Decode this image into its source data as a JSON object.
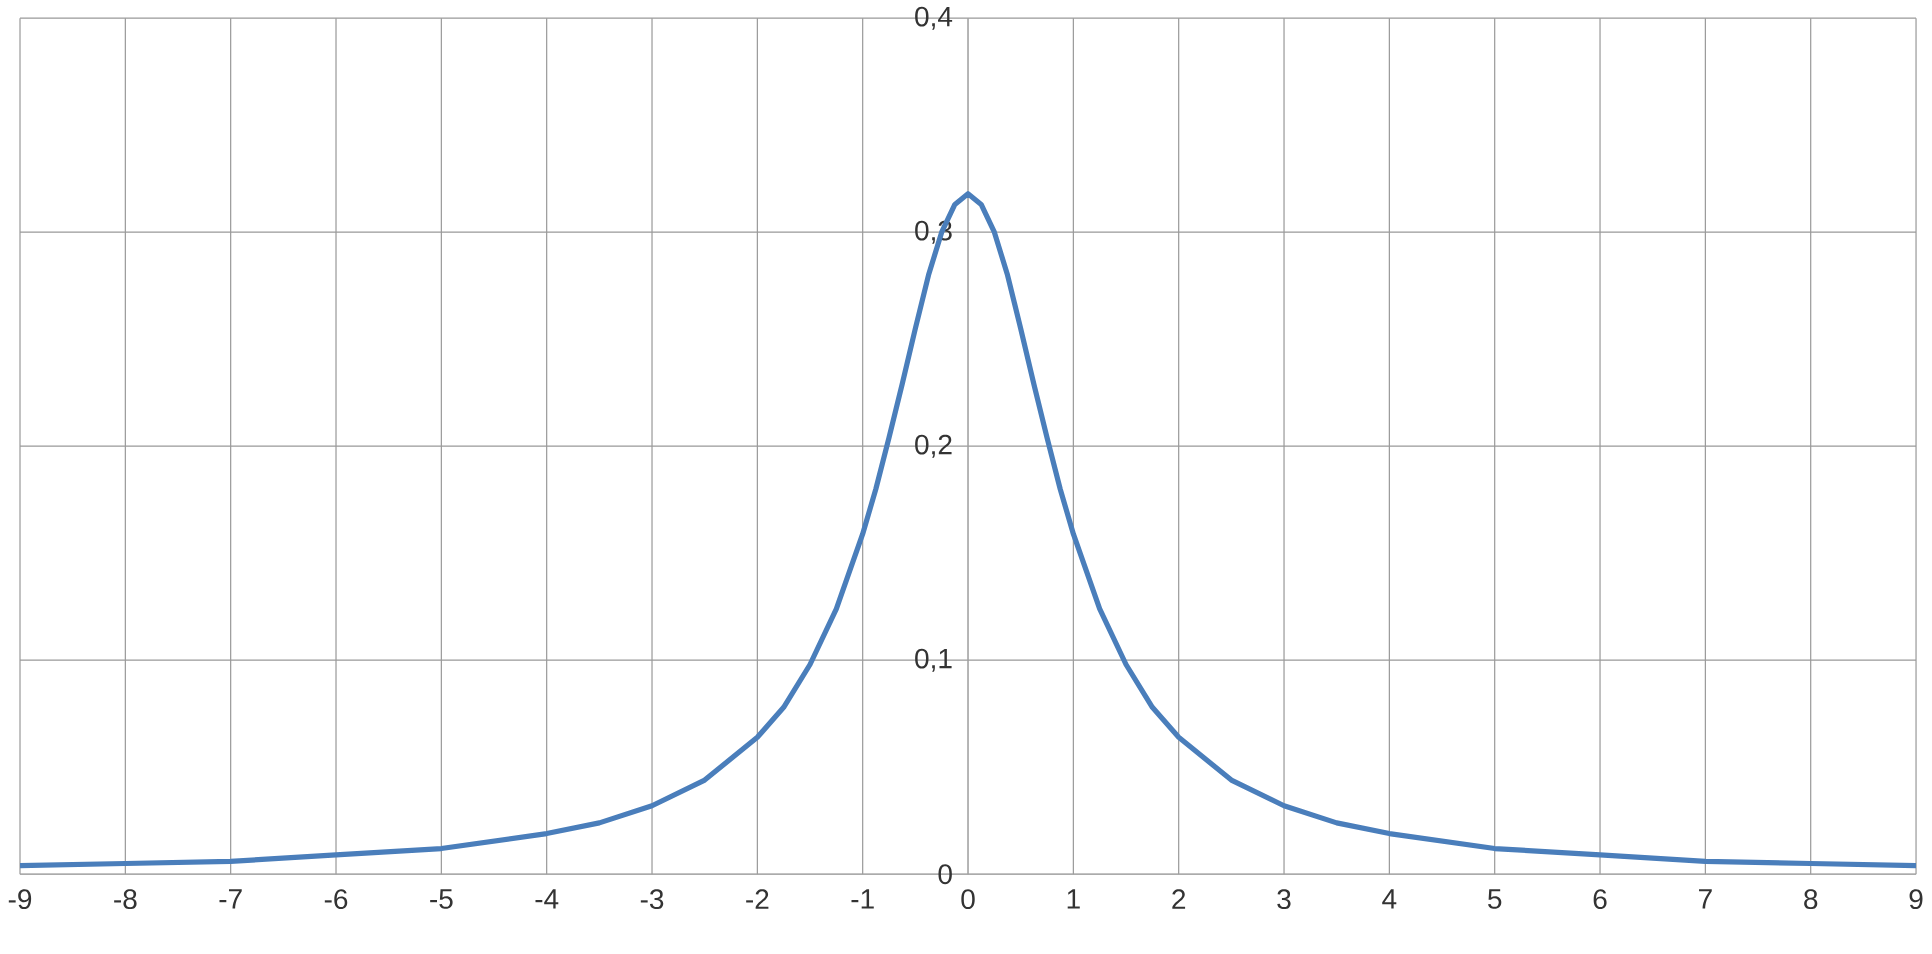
{
  "chart_data": {
    "type": "line",
    "x": [
      -9,
      -8,
      -7,
      -6,
      -5,
      -4,
      -3.5,
      -3,
      -2.5,
      -2,
      -1.75,
      -1.5,
      -1.25,
      -1,
      -0.875,
      -0.75,
      -0.625,
      -0.5,
      -0.375,
      -0.25,
      -0.125,
      0,
      0.125,
      0.25,
      0.375,
      0.5,
      0.625,
      0.75,
      0.875,
      1,
      1.25,
      1.5,
      1.75,
      2,
      2.5,
      3,
      3.5,
      4,
      5,
      6,
      7,
      8,
      9
    ],
    "series": [
      {
        "color": "#4a7ebb",
        "values": [
          0.004,
          0.005,
          0.006,
          0.009,
          0.012,
          0.019,
          0.024,
          0.032,
          0.044,
          0.064,
          0.078,
          0.098,
          0.124,
          0.159,
          0.18,
          0.204,
          0.229,
          0.255,
          0.28,
          0.3,
          0.313,
          0.318,
          0.313,
          0.3,
          0.28,
          0.255,
          0.229,
          0.204,
          0.18,
          0.159,
          0.124,
          0.098,
          0.078,
          0.064,
          0.044,
          0.032,
          0.024,
          0.019,
          0.012,
          0.009,
          0.006,
          0.005,
          0.004
        ]
      }
    ],
    "xlim": [
      -9,
      9
    ],
    "ylim": [
      0,
      0.4
    ],
    "xticks": [
      -9,
      -8,
      -7,
      -6,
      -5,
      -4,
      -3,
      -2,
      -1,
      0,
      1,
      2,
      3,
      4,
      5,
      6,
      7,
      8,
      9
    ],
    "yticks": [
      0,
      {
        "value": 0.1,
        "label": "0,1"
      },
      {
        "value": 0.2,
        "label": "0,2"
      },
      {
        "value": 0.3,
        "label": "0,3"
      },
      {
        "value": 0.4,
        "label": "0,4"
      }
    ],
    "grid": true,
    "marker": "none",
    "line_style": "solid"
  }
}
